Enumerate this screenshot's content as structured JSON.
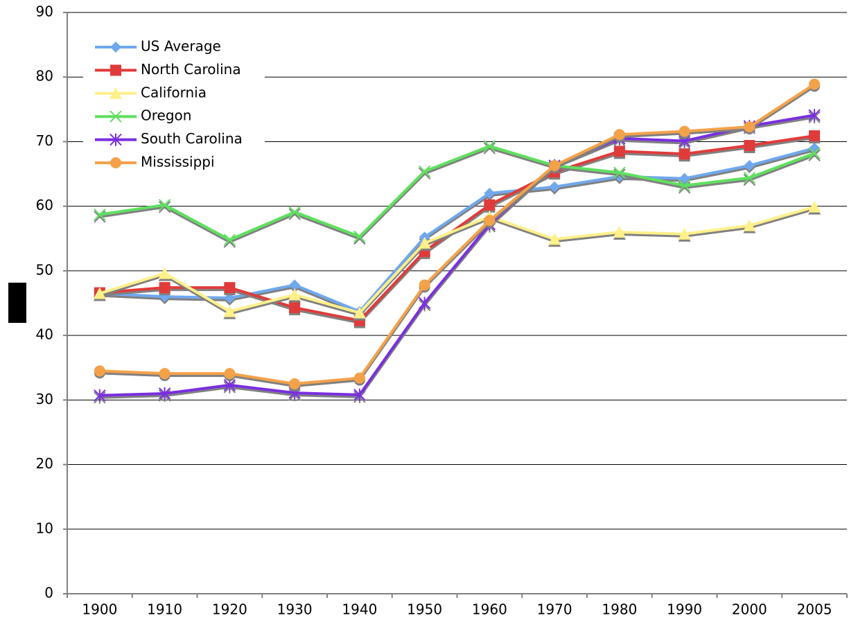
{
  "chart_data": {
    "type": "line",
    "categories": [
      "1900",
      "1910",
      "1920",
      "1930",
      "1940",
      "1950",
      "1960",
      "1970",
      "1980",
      "1990",
      "2000",
      "2005"
    ],
    "series": [
      {
        "name": "US Average",
        "color": "#6fa8ee",
        "marker": "diamond",
        "values": [
          46.5,
          46,
          45.8,
          47.8,
          43.7,
          55.2,
          62,
          63,
          64.6,
          64.3,
          66.3,
          69
        ]
      },
      {
        "name": "North Carolina",
        "color": "#e03a3a",
        "marker": "square",
        "values": [
          46.6,
          47.4,
          47.4,
          44.3,
          42.3,
          53,
          60.2,
          65.3,
          68.5,
          68.1,
          69.4,
          70.9
        ]
      },
      {
        "name": "California",
        "color": "#fff08a",
        "marker": "triangle",
        "values": [
          46.5,
          49.6,
          43.7,
          46.3,
          43.5,
          54.3,
          58.4,
          54.9,
          56,
          55.7,
          57,
          59.9
        ]
      },
      {
        "name": "Oregon",
        "color": "#5ee05e",
        "marker": "x",
        "values": [
          58.7,
          60.2,
          54.8,
          59.1,
          55.3,
          65.4,
          69.3,
          66.3,
          65.2,
          63.2,
          64.4,
          68.2
        ]
      },
      {
        "name": "South Carolina",
        "color": "#7a2de0",
        "marker": "asterisk",
        "values": [
          30.7,
          31,
          32.3,
          31.1,
          30.8,
          45,
          57.2,
          66.3,
          70.5,
          70.1,
          72.4,
          74.1
        ]
      },
      {
        "name": "Mississippi",
        "color": "#f4a24a",
        "marker": "circle",
        "values": [
          34.5,
          34.1,
          34.1,
          32.5,
          33.4,
          47.8,
          57.8,
          66.3,
          71.1,
          71.6,
          72.3,
          78.9
        ]
      }
    ],
    "ylim": [
      0,
      90
    ],
    "yticks": [
      0,
      10,
      20,
      30,
      40,
      50,
      60,
      70,
      80,
      90
    ],
    "grid": true,
    "legend": "upper-left"
  }
}
